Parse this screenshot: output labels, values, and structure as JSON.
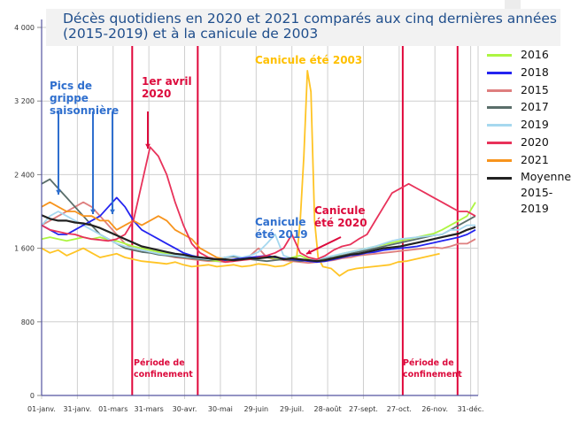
{
  "chart_data": {
    "type": "line",
    "title": "Décès quotidiens en 2020 et 2021 comparés aux cinq dernières années (2015-2019) et à la canicule de 2003",
    "xlabel": "",
    "ylabel": "",
    "xlim_day_of_year": [
      1,
      365
    ],
    "ylim": [
      0,
      4000
    ],
    "yticks": [
      0,
      800,
      1600,
      2400,
      3200,
      4000
    ],
    "ytick_labels": [
      "0",
      "800",
      "1 600",
      "2 400",
      "3 200",
      "4 000"
    ],
    "xticks_day_of_year": [
      1,
      31,
      61,
      91,
      121,
      151,
      181,
      211,
      241,
      271,
      301,
      331,
      361
    ],
    "xtick_labels": [
      "01-janv.",
      "31-janv.",
      "01-mars",
      "31-mars",
      "30-avr.",
      "30-mai",
      "29-juin",
      "29-juil.",
      "28-août",
      "27-sept.",
      "27-oct.",
      "26-nov.",
      "31-déc."
    ],
    "grid": true,
    "legend_placement": "right",
    "confinement_lines_day_of_year": [
      77,
      132,
      304,
      350
    ],
    "confinement_line_color": "#e0073b",
    "weekly_x": [
      1,
      8,
      15,
      22,
      29,
      36,
      43,
      50,
      57,
      64,
      71,
      78,
      85,
      92,
      99,
      106,
      113,
      120,
      127,
      134,
      141,
      148,
      155,
      162,
      169,
      176,
      183,
      190,
      197,
      204,
      211,
      218,
      225,
      232,
      239,
      246,
      253,
      260,
      267,
      274,
      281,
      288,
      295,
      302,
      309,
      316,
      323,
      330,
      337,
      344,
      351,
      358,
      365
    ],
    "series": [
      {
        "name": "2016",
        "color": "#adf542",
        "y": [
          1700,
          1720,
          1700,
          1680,
          1700,
          1720,
          1700,
          1720,
          1690,
          1680,
          1650,
          1620,
          1600,
          1580,
          1560,
          1540,
          1520,
          1500,
          1490,
          1480,
          1470,
          1460,
          1460,
          1470,
          1480,
          1490,
          1500,
          1500,
          1490,
          1480,
          1500,
          1520,
          1480,
          1460,
          1480,
          1500,
          1540,
          1560,
          1580,
          1600,
          1620,
          1640,
          1660,
          1680,
          1700,
          1720,
          1740,
          1760,
          1800,
          1850,
          1900,
          1950,
          2100
        ]
      },
      {
        "name": "2018",
        "color": "#2424f0",
        "y": [
          1850,
          1800,
          1750,
          1750,
          1800,
          1850,
          1900,
          1950,
          2050,
          2150,
          2050,
          1900,
          1800,
          1750,
          1700,
          1650,
          1600,
          1550,
          1520,
          1500,
          1490,
          1480,
          1470,
          1480,
          1490,
          1500,
          1510,
          1520,
          1500,
          1490,
          1480,
          1470,
          1460,
          1450,
          1460,
          1480,
          1500,
          1520,
          1530,
          1550,
          1560,
          1580,
          1590,
          1600,
          1610,
          1620,
          1640,
          1660,
          1680,
          1700,
          1720,
          1750,
          1800
        ]
      },
      {
        "name": "2015",
        "color": "#de7f7f",
        "y": [
          1850,
          1900,
          1950,
          2000,
          2050,
          2100,
          2050,
          1950,
          1850,
          1750,
          1650,
          1600,
          1580,
          1560,
          1540,
          1520,
          1500,
          1490,
          1480,
          1470,
          1460,
          1460,
          1450,
          1460,
          1480,
          1520,
          1600,
          1500,
          1480,
          1470,
          1460,
          1450,
          1440,
          1450,
          1460,
          1470,
          1490,
          1500,
          1520,
          1530,
          1540,
          1550,
          1560,
          1570,
          1580,
          1590,
          1600,
          1610,
          1600,
          1620,
          1650,
          1650,
          1700
        ]
      },
      {
        "name": "2017",
        "color": "#5a6e6a",
        "y": [
          2300,
          2350,
          2250,
          2150,
          2050,
          1950,
          1850,
          1750,
          1700,
          1650,
          1600,
          1580,
          1560,
          1550,
          1530,
          1520,
          1510,
          1500,
          1490,
          1480,
          1470,
          1480,
          1500,
          1510,
          1490,
          1480,
          1470,
          1460,
          1470,
          1480,
          1470,
          1460,
          1470,
          1480,
          1490,
          1500,
          1520,
          1540,
          1560,
          1580,
          1600,
          1620,
          1640,
          1660,
          1680,
          1700,
          1720,
          1740,
          1750,
          1800,
          1850,
          1900,
          1950
        ]
      },
      {
        "name": "2019",
        "color": "#a6d8ef",
        "y": [
          1850,
          1950,
          2000,
          1950,
          1900,
          1850,
          1800,
          1750,
          1700,
          1650,
          1620,
          1600,
          1580,
          1560,
          1540,
          1530,
          1520,
          1510,
          1500,
          1490,
          1480,
          1490,
          1500,
          1520,
          1500,
          1520,
          1560,
          1650,
          1750,
          1520,
          1490,
          1480,
          1470,
          1480,
          1500,
          1520,
          1540,
          1560,
          1580,
          1600,
          1620,
          1650,
          1680,
          1700,
          1710,
          1720,
          1730,
          1740,
          1750,
          1800,
          1800,
          1850,
          1850
        ]
      },
      {
        "name": "2020",
        "color": "#e8325a",
        "y": [
          1850,
          1800,
          1780,
          1760,
          1750,
          1720,
          1700,
          1690,
          1680,
          1700,
          1750,
          1900,
          2300,
          2700,
          2600,
          2400,
          2100,
          1850,
          1650,
          1550,
          1500,
          1480,
          1450,
          1460,
          1470,
          1480,
          1500,
          1520,
          1550,
          1600,
          1750,
          1550,
          1500,
          1480,
          1520,
          1580,
          1620,
          1640,
          1700,
          1750,
          1900,
          2050,
          2200,
          2250,
          2300,
          2250,
          2200,
          2150,
          2100,
          2050,
          2000,
          2000,
          1950
        ]
      },
      {
        "name": "2021",
        "color": "#f7941d",
        "y": [
          2050,
          2100,
          2050,
          2000,
          2000,
          1950,
          1950,
          1900,
          1900,
          1800,
          1850,
          1900,
          1850,
          1900,
          1950,
          1900,
          1800,
          1750,
          1700,
          1600,
          1550,
          1500,
          1480
        ]
      },
      {
        "name": "Moyenne 2015-2019",
        "color": "#222222",
        "y": [
          1960,
          1920,
          1900,
          1900,
          1880,
          1870,
          1850,
          1820,
          1780,
          1740,
          1700,
          1660,
          1620,
          1600,
          1580,
          1560,
          1540,
          1530,
          1510,
          1500,
          1490,
          1480,
          1480,
          1470,
          1480,
          1490,
          1490,
          1500,
          1510,
          1480,
          1490,
          1480,
          1470,
          1460,
          1470,
          1490,
          1510,
          1530,
          1540,
          1560,
          1580,
          1600,
          1610,
          1620,
          1640,
          1660,
          1680,
          1700,
          1720,
          1740,
          1760,
          1800,
          1830
        ]
      },
      {
        "name": "",
        "color": "#ffc425",
        "x": [
          1,
          8,
          15,
          22,
          29,
          36,
          43,
          50,
          57,
          64,
          71,
          78,
          85,
          92,
          99,
          106,
          113,
          120,
          127,
          134,
          141,
          148,
          155,
          162,
          169,
          176,
          183,
          190,
          197,
          204,
          211,
          215,
          218,
          221,
          224,
          227,
          230,
          233,
          237,
          244,
          251,
          258,
          265,
          272,
          279,
          286,
          293,
          300,
          307,
          314,
          321,
          328,
          335
        ],
        "y": [
          1600,
          1550,
          1580,
          1520,
          1560,
          1600,
          1550,
          1500,
          1520,
          1540,
          1500,
          1480,
          1460,
          1450,
          1440,
          1430,
          1450,
          1420,
          1400,
          1410,
          1420,
          1400,
          1410,
          1420,
          1400,
          1410,
          1430,
          1420,
          1400,
          1410,
          1450,
          1500,
          1900,
          2600,
          3530,
          3300,
          1900,
          1500,
          1400,
          1380,
          1300,
          1360,
          1380,
          1390,
          1400,
          1410,
          1420,
          1450,
          1460,
          1480,
          1500,
          1520,
          1540
        ]
      }
    ],
    "legend": [
      "2016",
      "2018",
      "2015",
      "2017",
      "2019",
      "2020",
      "2021",
      "Moyenne 2015-2019"
    ],
    "annotations": {
      "grippe": "Pics de grippe saisonnière",
      "avril": "1er avril 2020",
      "canicule_2003": "Canicule été 2003",
      "canicule_2019": "Canicule été 2019",
      "canicule_2020": "Canicule été 2020",
      "confinement_1": "Période de confinement",
      "confinement_2": "Période de confinement"
    },
    "annotation_colors": {
      "blue": "#2f6fce",
      "red": "#dc0a3c",
      "gold": "#ffc000"
    }
  }
}
